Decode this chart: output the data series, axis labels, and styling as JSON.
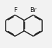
{
  "bg_color": "#f2f2f2",
  "line_color": "#222222",
  "line_width": 1.1,
  "atom_F": "F",
  "atom_Br": "Br",
  "font_size": 6.5,
  "font_color": "#222222"
}
